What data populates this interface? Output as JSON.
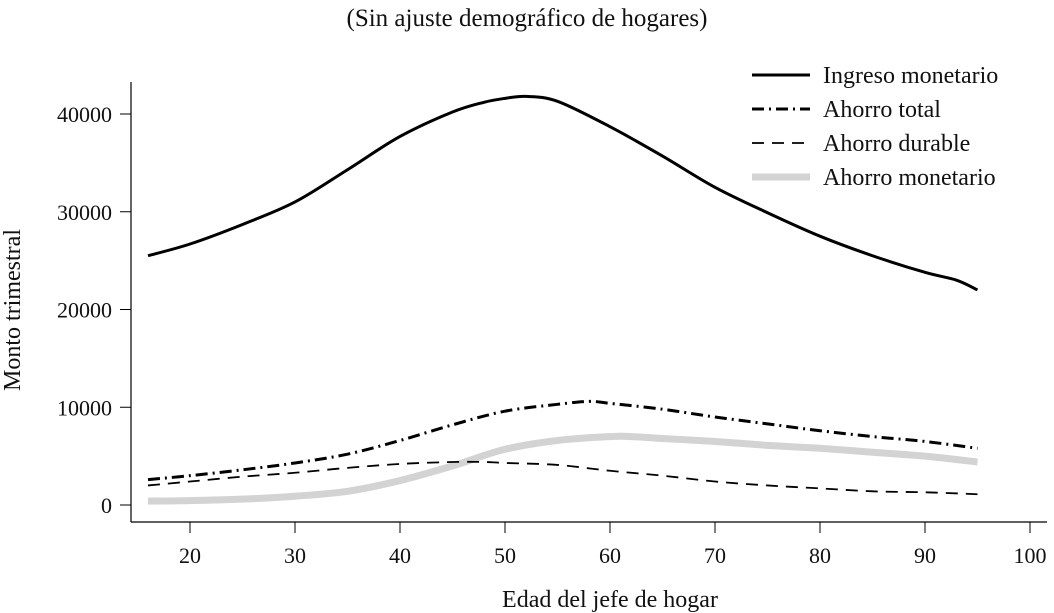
{
  "chart_data": {
    "type": "line",
    "title": "(Sin ajuste demográfico de hogares)",
    "xlabel": "Edad del jefe de hogar",
    "ylabel": "Monto trimestral",
    "xlim": [
      15,
      100
    ],
    "ylim": [
      -1500,
      44000
    ],
    "xticks": [
      20,
      30,
      40,
      50,
      60,
      70,
      80,
      90,
      100
    ],
    "yticks": [
      0,
      10000,
      20000,
      30000,
      40000
    ],
    "ytick_labels": [
      "0",
      "10000",
      "20000",
      "30000",
      "40000"
    ],
    "xtick_labels": [
      "20",
      "30",
      "40",
      "50",
      "60",
      "70",
      "80",
      "90",
      "100"
    ],
    "grid": false,
    "legend_position": "top-right",
    "series": [
      {
        "name": "Ingreso monetario",
        "style": "solid",
        "color": "#000000",
        "x": [
          16,
          20,
          25,
          30,
          35,
          40,
          45,
          48,
          50,
          52,
          55,
          60,
          65,
          70,
          75,
          80,
          85,
          90,
          93,
          95
        ],
        "y": [
          25500,
          26700,
          28700,
          31000,
          34300,
          37700,
          40200,
          41200,
          41600,
          41800,
          41300,
          38700,
          35700,
          32500,
          29900,
          27500,
          25500,
          23800,
          23000,
          22000
        ]
      },
      {
        "name": "Ahorro total",
        "style": "dash-dot",
        "color": "#000000",
        "x": [
          16,
          20,
          25,
          30,
          35,
          40,
          45,
          50,
          55,
          58,
          60,
          65,
          70,
          75,
          80,
          85,
          90,
          95
        ],
        "y": [
          2600,
          3000,
          3600,
          4300,
          5200,
          6600,
          8200,
          9600,
          10300,
          10600,
          10400,
          9800,
          9000,
          8300,
          7600,
          7000,
          6500,
          5800
        ]
      },
      {
        "name": "Ahorro durable",
        "style": "dashed",
        "color": "#000000",
        "x": [
          16,
          20,
          25,
          30,
          35,
          40,
          45,
          48,
          50,
          55,
          60,
          65,
          70,
          75,
          80,
          85,
          90,
          95
        ],
        "y": [
          2000,
          2400,
          2900,
          3300,
          3800,
          4200,
          4400,
          4400,
          4300,
          4100,
          3500,
          3000,
          2400,
          2000,
          1700,
          1400,
          1300,
          1100
        ]
      },
      {
        "name": "Ahorro monetario",
        "style": "thick-solid",
        "color": "#d3d3d3",
        "x": [
          16,
          20,
          25,
          30,
          35,
          40,
          45,
          50,
          55,
          60,
          62,
          65,
          70,
          75,
          80,
          85,
          90,
          95
        ],
        "y": [
          400,
          450,
          600,
          900,
          1400,
          2500,
          4000,
          5700,
          6600,
          7000,
          7000,
          6800,
          6500,
          6100,
          5800,
          5400,
          5000,
          4400
        ]
      }
    ]
  }
}
